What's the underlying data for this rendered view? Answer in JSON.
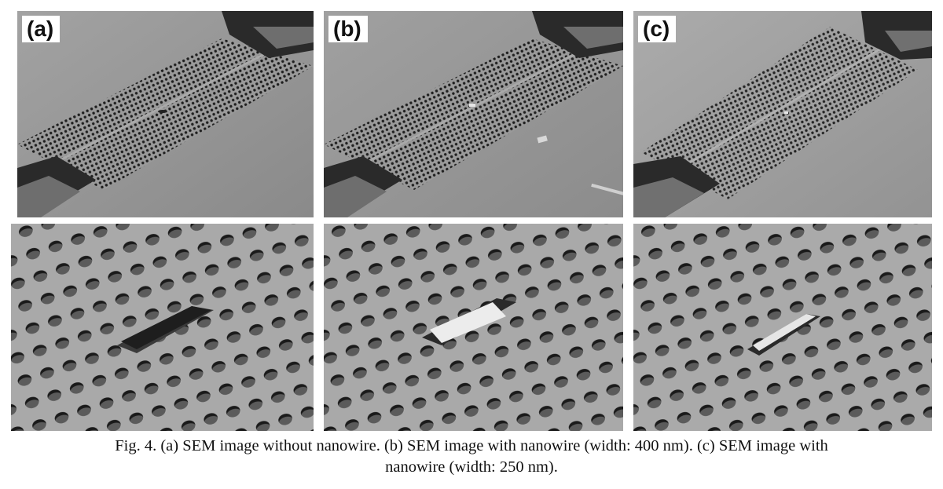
{
  "figure": {
    "panel_labels": [
      "(a)",
      "(b)",
      "(c)"
    ],
    "top_row_alt": "SEM overview images of photonic crystal cavities",
    "bottom_row_alt": "SEM close-up images of cavity region",
    "caption_line1": "Fig. 4.  (a) SEM image without nanowire. (b) SEM image with nanowire (width: 400 nm). (c) SEM image with",
    "caption_line2": "nanowire (width: 250 nm)."
  }
}
